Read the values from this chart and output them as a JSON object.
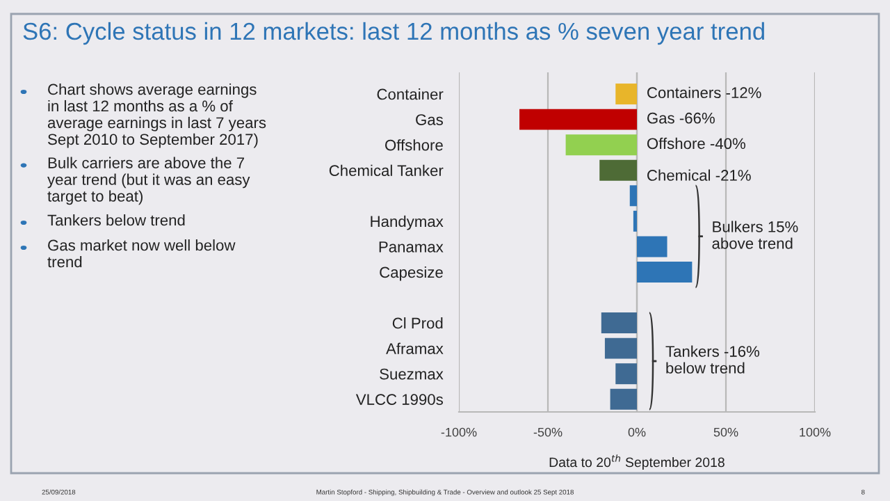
{
  "chart_data": {
    "type": "bar",
    "orientation": "horizontal",
    "title": "S6: Cycle status in 12 markets: last 12 months as % seven year trend",
    "xlabel": "Data to 20$^{th}$ September 2018",
    "categories": [
      "Container",
      "Gas",
      "Offshore",
      "Chemical Tanker",
      null,
      "Handymax",
      "Panamax",
      "Capesize",
      null,
      "Cl Prod",
      "Aframax",
      "Suezmax",
      "VLCC 1990s"
    ],
    "values": [
      -12,
      -66,
      -40,
      -21,
      -4,
      -2,
      17,
      31,
      null,
      -20,
      -18,
      -12,
      -15
    ],
    "colors": [
      "#e8b52a",
      "#c00000",
      "#92d050",
      "#4e6b36",
      "#2e75b6",
      "#2e75b6",
      "#2e75b6",
      "#2e75b6",
      "#2e75b6",
      "#3f6a93",
      "#3f6a93",
      "#3f6a93",
      "#3f6a93"
    ],
    "xlim": [
      -100,
      100
    ],
    "xticks": [
      {
        "value": -100,
        "label": "-100%"
      },
      {
        "value": -50,
        "label": "-50%"
      },
      {
        "value": 0,
        "label": "0%"
      },
      {
        "value": 50,
        "label": "50%"
      },
      {
        "value": 100,
        "label": "100%"
      }
    ],
    "grid": "x",
    "annotations": [
      "Containers -12%",
      "Gas -66%",
      "Offshore -40%",
      "Chemical -21%",
      "Bulkers 15% above trend",
      "Tankers -16% below trend",
      "Chart shows average earnings in last 12 months as a % of average earnings in last 7 years Sept 2010 to September 2017)",
      "Bulk carriers are above the 7 year trend (but it was an easy target to beat)",
      "Tankers below trend",
      "Gas market now well below trend",
      "25/09/2018",
      "Martin Stopford - Shipping, Shipbuilding & Trade - Overview and outlook 25 Sept 2018",
      "8"
    ]
  }
}
